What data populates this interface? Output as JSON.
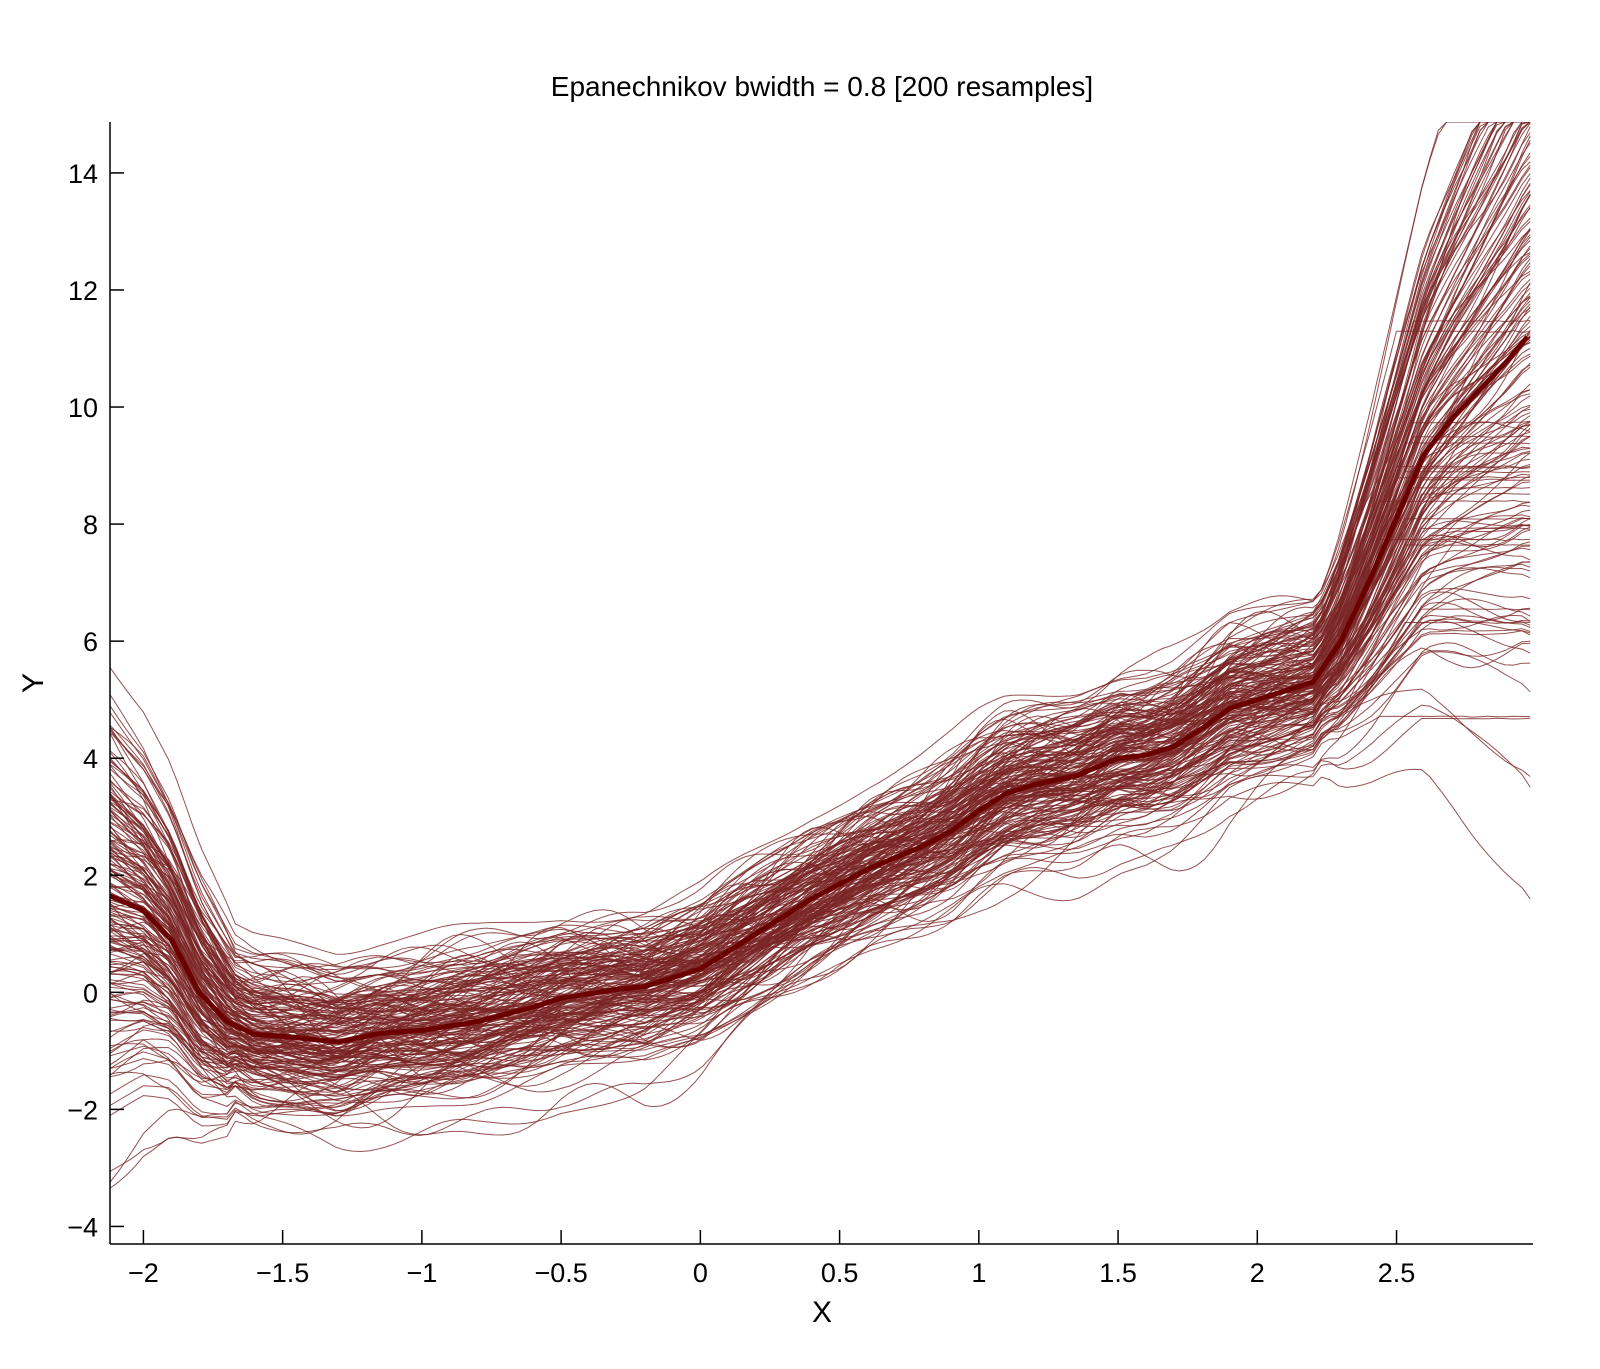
{
  "chart_data": {
    "type": "line",
    "title": "Epanechnikov bwidth = 0.8 [200 resamples]",
    "xlabel": "X",
    "ylabel": "Y",
    "xlim": [
      -2.12,
      2.99
    ],
    "ylim": [
      -4.3,
      14.87
    ],
    "grid": false,
    "legend": "none",
    "x_ticks": [
      "-2",
      "-1.5",
      "-1",
      "-0.5",
      "0",
      "0.5",
      "1",
      "1.5",
      "2",
      "2.5"
    ],
    "x_tick_values": [
      -2,
      -1.5,
      -1,
      -0.5,
      0,
      0.5,
      1,
      1.5,
      2,
      2.5
    ],
    "x_tick_labels": [
      "−2",
      "−1.5",
      "−1",
      "−0.5",
      "0",
      "0.5",
      "1",
      "1.5",
      "2",
      "2.5"
    ],
    "y_tick_values": [
      -4,
      -2,
      0,
      2,
      4,
      6,
      8,
      10,
      12,
      14
    ],
    "y_tick_labels": [
      "−4",
      "−2",
      "0",
      "2",
      "4",
      "6",
      "8",
      "10",
      "12",
      "14"
    ],
    "resample_count": 200,
    "colors": {
      "resamples": "#7a2626",
      "mean": "#6b0000"
    },
    "series": [
      {
        "role": "mean",
        "x": [
          -2.12,
          -2.0,
          -1.9,
          -1.8,
          -1.7,
          -1.6,
          -1.5,
          -1.4,
          -1.3,
          -1.15,
          -1.0,
          -0.8,
          -0.6,
          -0.5,
          -0.3,
          -0.2,
          0.0,
          0.2,
          0.4,
          0.6,
          0.8,
          0.9,
          1.0,
          1.1,
          1.2,
          1.35,
          1.5,
          1.6,
          1.7,
          1.8,
          1.9,
          2.0,
          2.1,
          2.2,
          2.3,
          2.4,
          2.5,
          2.6,
          2.7,
          2.8,
          2.9,
          2.97
        ],
        "y": [
          1.65,
          1.4,
          0.9,
          0.0,
          -0.5,
          -0.72,
          -0.75,
          -0.8,
          -0.85,
          -0.7,
          -0.65,
          -0.5,
          -0.25,
          -0.1,
          0.05,
          0.1,
          0.4,
          1.0,
          1.6,
          2.1,
          2.5,
          2.75,
          3.1,
          3.4,
          3.55,
          3.7,
          4.0,
          4.05,
          4.2,
          4.5,
          4.85,
          5.0,
          5.15,
          5.3,
          6.0,
          7.0,
          8.1,
          9.2,
          9.8,
          10.3,
          10.8,
          11.2
        ]
      }
    ]
  }
}
